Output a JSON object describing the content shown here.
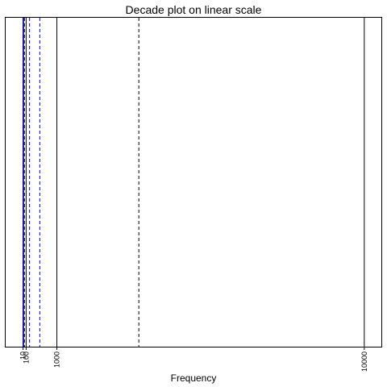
{
  "chart_data": {
    "type": "line",
    "title": "Decade plot on linear scale",
    "xlabel": "Frequency",
    "ylabel": "",
    "xlim": [
      -500,
      10500
    ],
    "tick_labels": [
      {
        "value": 10,
        "label": "10"
      },
      {
        "value": 100,
        "label": "100"
      },
      {
        "value": 1000,
        "label": "1000"
      },
      {
        "value": 10000,
        "label": "10000"
      }
    ],
    "vertical_lines": [
      {
        "x": 10,
        "style": "solid",
        "color": "#000000"
      },
      {
        "x": 100,
        "style": "solid",
        "color": "#000000"
      },
      {
        "x": 1000,
        "style": "solid",
        "color": "#000000"
      },
      {
        "x": 10000,
        "style": "solid",
        "color": "#000000"
      },
      {
        "x": 20,
        "style": "solid",
        "color": "#0000cc"
      },
      {
        "x": 50,
        "style": "dashed",
        "color": "#000000"
      },
      {
        "x": 200,
        "style": "dashed",
        "color": "#0000cc"
      },
      {
        "x": 500,
        "style": "dashed",
        "color": "#0000cc"
      },
      {
        "x": 3400,
        "style": "dashed",
        "color": "#000000"
      }
    ],
    "grid": false,
    "legend": "none"
  }
}
